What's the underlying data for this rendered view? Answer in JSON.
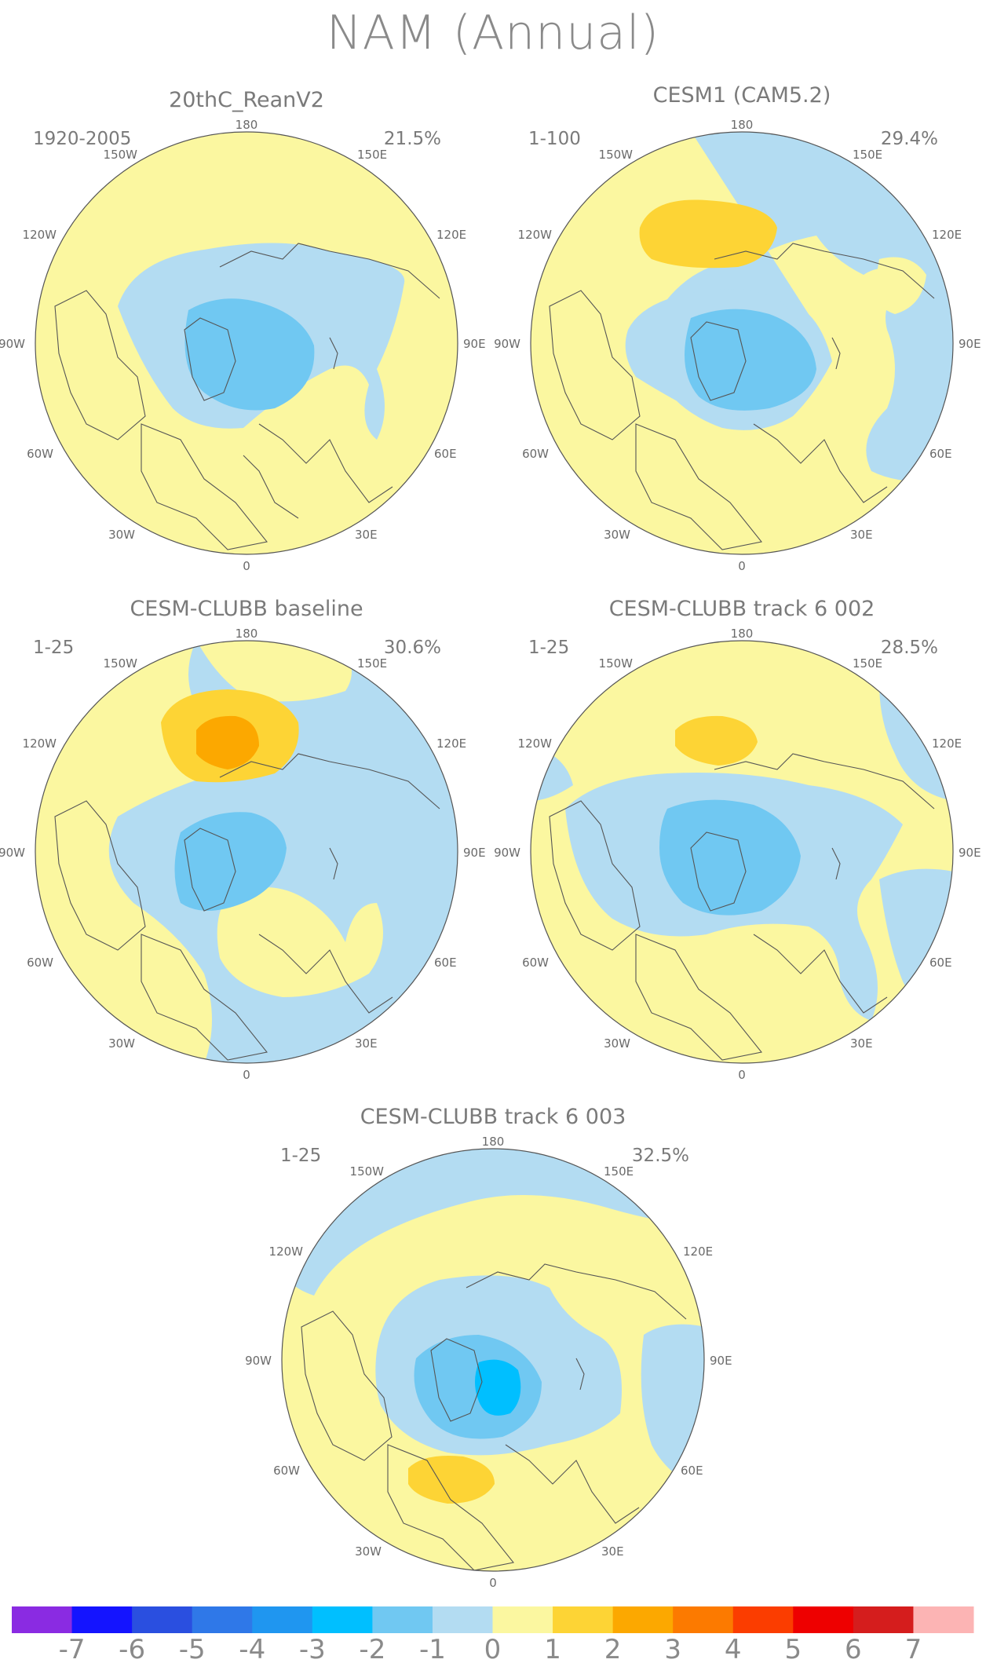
{
  "title": "NAM (Annual)",
  "panels": [
    {
      "title": "20thC_ReanV2",
      "period": "1920-2005",
      "variance": "21.5%",
      "lon_labels": {
        "n180": "180",
        "w150": "150W",
        "e150": "150E",
        "w120": "120W",
        "e120": "120E",
        "w90": "90W",
        "e90": "90E",
        "w60": "60W",
        "e60": "60E",
        "w30": "30W",
        "e30": "30E",
        "zero": "0"
      }
    },
    {
      "title": "CESM1 (CAM5.2)",
      "period": "1-100",
      "variance": "29.4%",
      "lon_labels": {
        "n180": "180",
        "w150": "150W",
        "e150": "150E",
        "w120": "120W",
        "e120": "120E",
        "w90": "90W",
        "e90": "90E",
        "w60": "60W",
        "e60": "60E",
        "w30": "30W",
        "e30": "30E",
        "zero": "0"
      }
    },
    {
      "title": "CESM-CLUBB baseline",
      "period": "1-25",
      "variance": "30.6%",
      "lon_labels": {
        "n180": "180",
        "w150": "150W",
        "e150": "150E",
        "w120": "120W",
        "e120": "120E",
        "w90": "90W",
        "e90": "90E",
        "w60": "60W",
        "e60": "60E",
        "w30": "30W",
        "e30": "30E",
        "zero": "0"
      }
    },
    {
      "title": "CESM-CLUBB track 6 002",
      "period": "1-25",
      "variance": "28.5%",
      "lon_labels": {
        "n180": "180",
        "w150": "150W",
        "e150": "150E",
        "w120": "120W",
        "e120": "120E",
        "w90": "90W",
        "e90": "90E",
        "w60": "60W",
        "e60": "60E",
        "w30": "30W",
        "e30": "30E",
        "zero": "0"
      }
    },
    {
      "title": "CESM-CLUBB track 6 003",
      "period": "1-25",
      "variance": "32.5%",
      "lon_labels": {
        "n180": "180",
        "w150": "150W",
        "e150": "150E",
        "w120": "120W",
        "e120": "120E",
        "w90": "90W",
        "e90": "90E",
        "w60": "60W",
        "e60": "60E",
        "w30": "30W",
        "e30": "30E",
        "zero": "0"
      }
    }
  ],
  "colorbar": {
    "colors": [
      "#8a2be2",
      "#1414ff",
      "#2a4fe0",
      "#2f78e8",
      "#1f96f0",
      "#00bfff",
      "#70c8f2",
      "#b3dcf2",
      "#fbf7a0",
      "#fdd435",
      "#fca800",
      "#fc7a00",
      "#fb3d00",
      "#ee0000",
      "#d51d1d",
      "#fcb4b4"
    ],
    "labels": [
      "-7",
      "-6",
      "-5",
      "-4",
      "-3",
      "-2",
      "-1",
      "0",
      "1",
      "2",
      "3",
      "4",
      "5",
      "6",
      "7"
    ]
  },
  "palette": {
    "yellow": "#fbf7a0",
    "light_blue": "#b3dcf2",
    "blue": "#70c8f2",
    "cyan": "#00bfff",
    "gold": "#fdd435",
    "orange": "#fca800",
    "coast": "#555555"
  }
}
